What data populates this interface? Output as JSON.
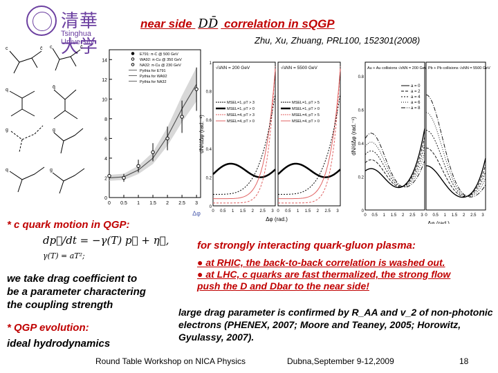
{
  "logo": {
    "chinese": "清華大学",
    "english": "Tsinghua University"
  },
  "title": {
    "before": "near side",
    "symbol": "DD̄",
    "after": "correlation in sQGP"
  },
  "reference": "Zhu, Xu, Zhuang, PRL100, 152301(2008)",
  "legend_left": [
    "E791: π-C @ 500 GeV",
    "WA92: π-Cu @ 350 GeV",
    "NA32: π-Cu @ 230 GeV",
    "Pythia for E791",
    "Pythia for WA92",
    "Pythia for NA32"
  ],
  "fig_middle": {
    "panel1_label": "√sNN = 200 GeV",
    "panel2_label": "√sNN = 5500 GeV",
    "legend1": [
      "MSEL=1, pT > 3",
      "MSEL=1, pT > 0",
      "MSEL=4, pT > 3",
      "MSEL=4, pT > 0"
    ],
    "legend2": [
      "MSEL=1, pT > 5",
      "MSEL=1, pT > 0",
      "MSEL=4, pT > 5",
      "MSEL=4, pT > 0"
    ],
    "ylabel": "dN/dΔφ (rad.⁻¹)",
    "xlabel": "Δφ (rad.)"
  },
  "fig_right": {
    "panel1_label": "Au + Au collisions √sNN = 200 GeV",
    "panel2_label": "Pb + Pb collisions √sNN = 5500 GeV",
    "legend": [
      "a = 0",
      "a = 2",
      "a = 4",
      "a = 6",
      "a = 8"
    ],
    "ylabel": "dN/dΔφ (rad.⁻¹)",
    "xlabel": "Δφ (rad.)"
  },
  "c_quark_heading": "* c quark motion in QGP:",
  "formula1": "dp⃗/dt = −γ(T) p⃗ + η⃗,",
  "formula2": "γ(T) = aT²;",
  "drag_text": [
    "we take drag coefficient to",
    "be a parameter charactering",
    "the coupling strength"
  ],
  "qgp_heading": "* QGP evolution:",
  "hydro_text": "ideal hydrodynamics",
  "plasma_heading": "for strongly interacting quark-gluon plasma:",
  "bullets": [
    "● at RHIC, the back-to-back correlation is washed out.",
    "● at LHC, c quarks are fast thermalized, the strong flow push the D and Dbar to the near side!"
  ],
  "drag_param_text": "large drag parameter is confirmed by R_AA and v_2 of non-photonic electrons (PHENEX, 2007; Moore and Teaney, 2005; Horowitz, Gyulassy, 2007).",
  "footer": {
    "workshop": "Round Table Workshop on NICA Physics",
    "date": "Dubna,September 9-12,2009",
    "page": "18"
  },
  "chart_data": [
    {
      "type": "line",
      "title": "",
      "xlabel": "Δφ",
      "ylabel": "",
      "x": [
        0,
        0.5,
        1,
        1.5,
        2,
        2.5,
        3
      ],
      "xlim": [
        0,
        3.14
      ],
      "ylim": [
        0,
        15
      ],
      "yticks": [
        0,
        2,
        4,
        6,
        8,
        10,
        12,
        14
      ],
      "xtick_labels": [
        "0",
        "0.5",
        "1",
        "1.5",
        "2",
        "2.5",
        "3"
      ],
      "series": [
        {
          "name": "Pythia",
          "values": [
            2.0,
            2.1,
            2.8,
            4.0,
            6.2,
            9.0,
            11.5
          ]
        },
        {
          "name": "Data",
          "values": [
            2.2,
            2.0,
            3.2,
            4.6,
            6.0,
            8.2,
            11.0
          ]
        }
      ]
    },
    {
      "type": "line",
      "xlabel": "Δφ (rad.)",
      "ylabel": "dN/dΔφ (rad.⁻¹)",
      "ylim": [
        0,
        1
      ],
      "yticks": [
        "0",
        "0.2",
        "0.4",
        "0.6",
        "0.8",
        "1"
      ],
      "xtick_labels": [
        "0",
        "0.5",
        "1",
        "1.5",
        "2",
        "2.5",
        "3"
      ]
    },
    {
      "type": "line",
      "xlabel": "Δφ (rad.)",
      "ylabel": "dN/dΔφ (rad.⁻¹)",
      "ylim": [
        0,
        0.9
      ],
      "yticks": [
        "0",
        "0.2",
        "0.4",
        "0.6",
        "0.8"
      ],
      "xtick_labels": [
        "0",
        "0.5",
        "1",
        "1.5",
        "2",
        "2.5",
        "3"
      ]
    }
  ]
}
